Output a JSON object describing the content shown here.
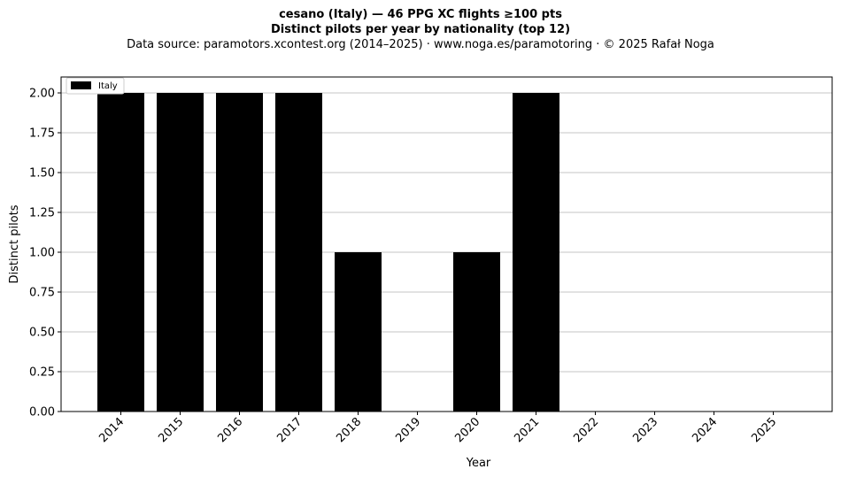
{
  "chart_data": {
    "type": "bar",
    "title": "cesano (Italy)  —  46 PPG XC flights ≥100 pts",
    "subtitle": "Distinct pilots per year by nationality (top 12)",
    "source_line": "Data source: paramotors.xcontest.org (2014–2025)  ·  www.noga.es/paramotoring  ·  © 2025 Rafał Noga",
    "xlabel": "Year",
    "ylabel": "Distinct pilots",
    "categories": [
      "2014",
      "2015",
      "2016",
      "2017",
      "2018",
      "2019",
      "2020",
      "2021",
      "2022",
      "2023",
      "2024",
      "2025"
    ],
    "series": [
      {
        "name": "Italy",
        "color": "#000000",
        "values": [
          2,
          2,
          2,
          2,
          1,
          0,
          1,
          2,
          0,
          0,
          0,
          0
        ]
      }
    ],
    "ylim": [
      0,
      2.1
    ],
    "yticks": [
      "0.00",
      "0.25",
      "0.50",
      "0.75",
      "1.00",
      "1.25",
      "1.50",
      "1.75",
      "2.00"
    ],
    "grid": "y",
    "legend_position": "top-left"
  }
}
